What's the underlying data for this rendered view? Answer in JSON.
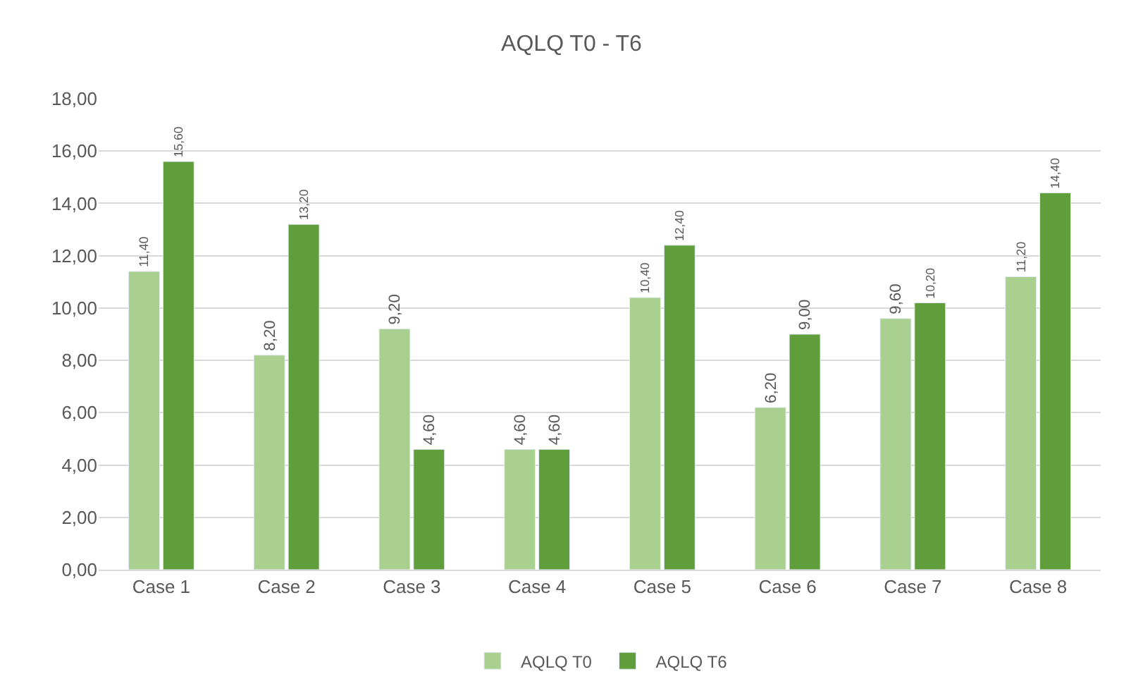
{
  "chart_data": {
    "type": "bar",
    "title": "AQLQ T0 - T6",
    "categories": [
      "Case 1",
      "Case 2",
      "Case 3",
      "Case 4",
      "Case 5",
      "Case 6",
      "Case 7",
      "Case 8"
    ],
    "series": [
      {
        "name": "AQLQ T0",
        "color": "#a9d08e",
        "values": [
          11.4,
          8.2,
          9.2,
          4.6,
          10.4,
          6.2,
          9.6,
          11.2
        ],
        "value_labels": [
          "11,40",
          "8,20",
          "9,20",
          "4,60",
          "10,40",
          "6,20",
          "9,60",
          "11,20"
        ]
      },
      {
        "name": "AQLQ T6",
        "color": "#5f9e3b",
        "values": [
          15.6,
          13.2,
          4.6,
          4.6,
          12.4,
          9.0,
          10.2,
          14.4
        ],
        "value_labels": [
          "15,60",
          "13,20",
          "4,60",
          "4,60",
          "12,40",
          "9,00",
          "10,20",
          "14,40"
        ]
      }
    ],
    "ylim": [
      0,
      18
    ],
    "yticks": [
      {
        "value": 0,
        "label": "0,00"
      },
      {
        "value": 2,
        "label": "2,00"
      },
      {
        "value": 4,
        "label": "4,00"
      },
      {
        "value": 6,
        "label": "6,00"
      },
      {
        "value": 8,
        "label": "8,00"
      },
      {
        "value": 10,
        "label": "10,00"
      },
      {
        "value": 12,
        "label": "12,00"
      },
      {
        "value": 14,
        "label": "14,00"
      },
      {
        "value": 16,
        "label": "16,00"
      },
      {
        "value": 18,
        "label": "18,00"
      }
    ],
    "grid": "y",
    "legend": "bottom"
  }
}
